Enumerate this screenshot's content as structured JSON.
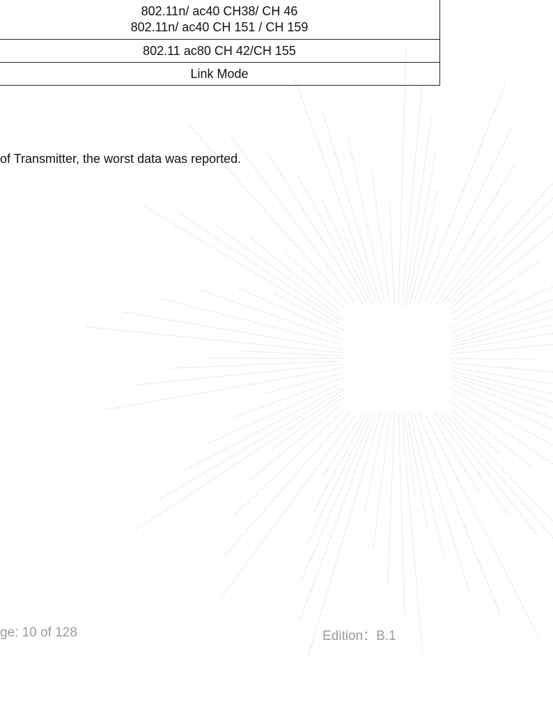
{
  "table": {
    "rows": [
      [
        "802.11n/ ac40 CH38/ CH 46",
        "802.11n/ ac40 CH 151 / CH 159"
      ],
      [
        "802.11 ac80 CH 42/CH 155"
      ],
      [
        "Link Mode"
      ]
    ]
  },
  "note": "of Transmitter, the worst data was reported.",
  "footer": {
    "page": "ge: 10 of 128",
    "edition": "Edition：B.1"
  }
}
